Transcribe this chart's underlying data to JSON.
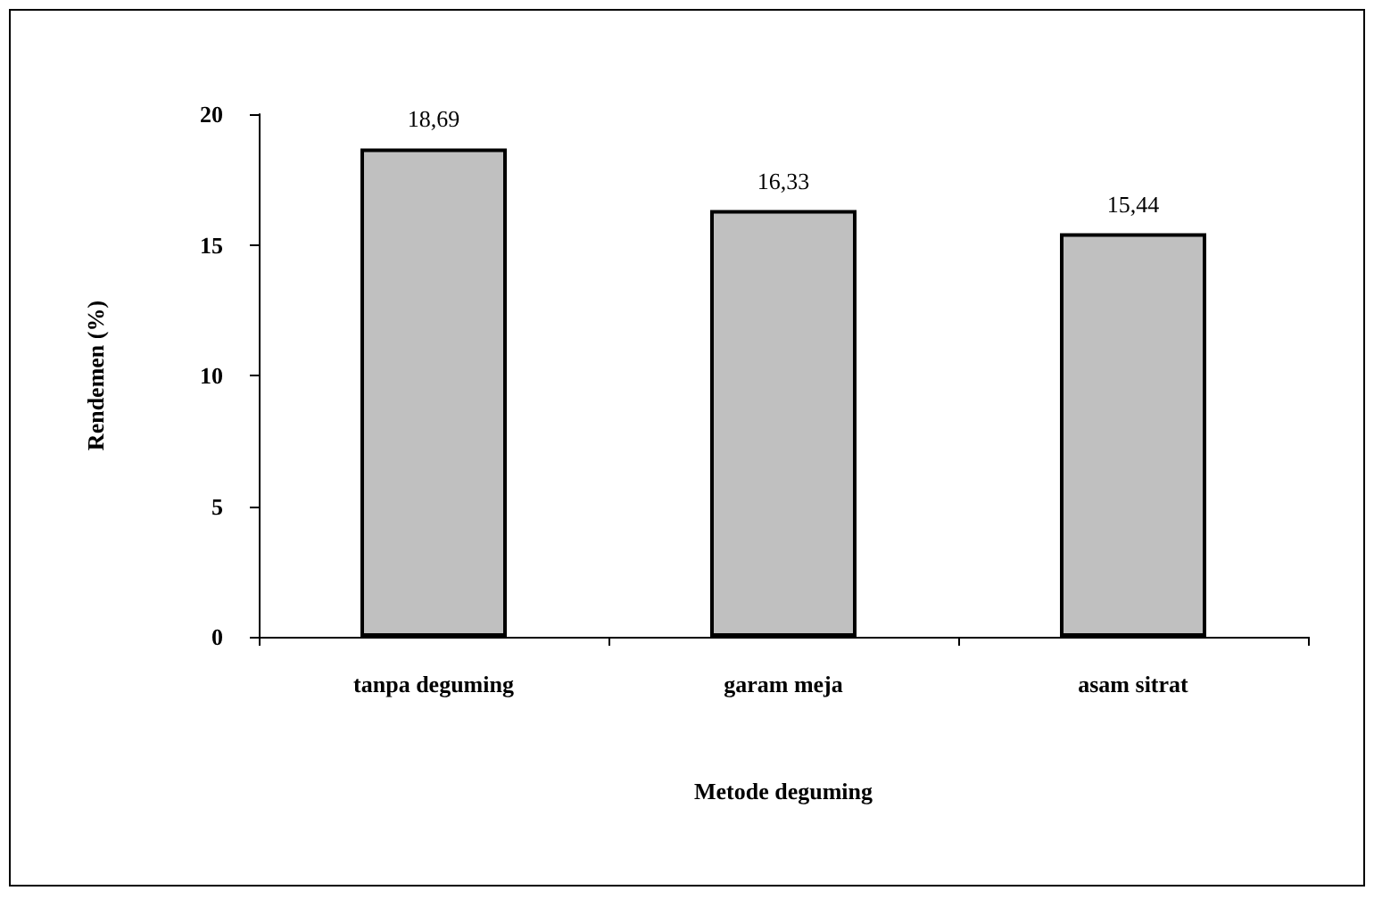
{
  "chart_data": {
    "type": "bar",
    "xlabel": "Metode deguming",
    "ylabel": "Rendemen (%)",
    "categories": [
      "tanpa deguming",
      "garam meja",
      "asam sitrat"
    ],
    "values": [
      18.69,
      16.33,
      15.44
    ],
    "value_labels": [
      "18,69",
      "16,33",
      "15,44"
    ],
    "color": "#c0c0c0",
    "ylim": [
      0,
      20
    ],
    "yticks": [
      0,
      5,
      10,
      15,
      20
    ],
    "grid": false
  }
}
